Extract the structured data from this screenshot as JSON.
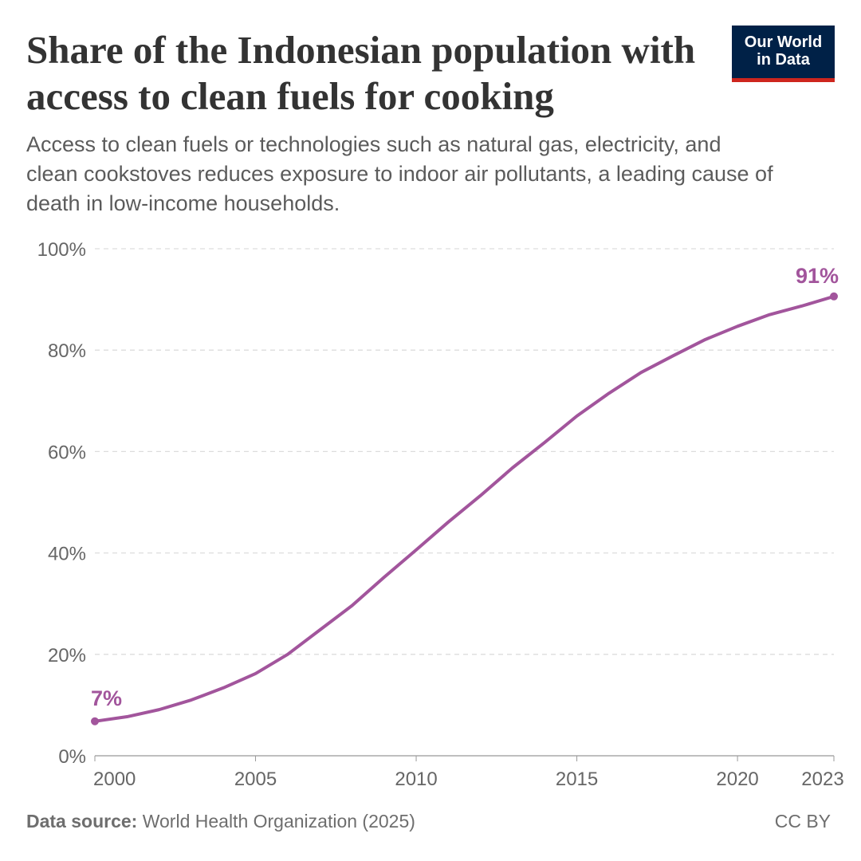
{
  "header": {
    "title": "Share of the Indonesian population with access to clean fuels for cooking",
    "subtitle": "Access to clean fuels or technologies such as natural gas, electricity, and clean cookstoves reduces exposure to indoor air pollutants, a leading cause of death in low-income households.",
    "logo_line1": "Our World",
    "logo_line2": "in Data"
  },
  "footer": {
    "source_label": "Data source:",
    "source": "World Health Organization (2025)",
    "license": "CC BY"
  },
  "chart_data": {
    "type": "line",
    "title": "Share of the Indonesian population with access to clean fuels for cooking",
    "xlabel": "",
    "ylabel": "",
    "x": [
      2000,
      2001,
      2002,
      2003,
      2004,
      2005,
      2006,
      2007,
      2008,
      2009,
      2010,
      2011,
      2012,
      2013,
      2014,
      2015,
      2016,
      2017,
      2018,
      2019,
      2020,
      2021,
      2022,
      2023
    ],
    "series": [
      {
        "values": [
          6.8,
          7.7,
          9.1,
          11.0,
          13.4,
          16.2,
          20.0,
          24.8,
          29.6,
          35.2,
          40.6,
          46.1,
          51.3,
          56.8,
          61.8,
          67.0,
          71.5,
          75.6,
          78.9,
          82.1,
          84.7,
          87.0,
          88.7,
          90.6
        ],
        "color": "#a2559c"
      }
    ],
    "xlim": [
      2000,
      2023
    ],
    "ylim": [
      0,
      100
    ],
    "x_ticks": [
      "2000",
      "2005",
      "2010",
      "2015",
      "2020",
      "2023"
    ],
    "y_ticks": [
      "0%",
      "20%",
      "40%",
      "60%",
      "80%",
      "100%"
    ],
    "end_labels": {
      "start": "7%",
      "end": "91%"
    },
    "grid": "horizontal dashed",
    "legend": "none"
  }
}
